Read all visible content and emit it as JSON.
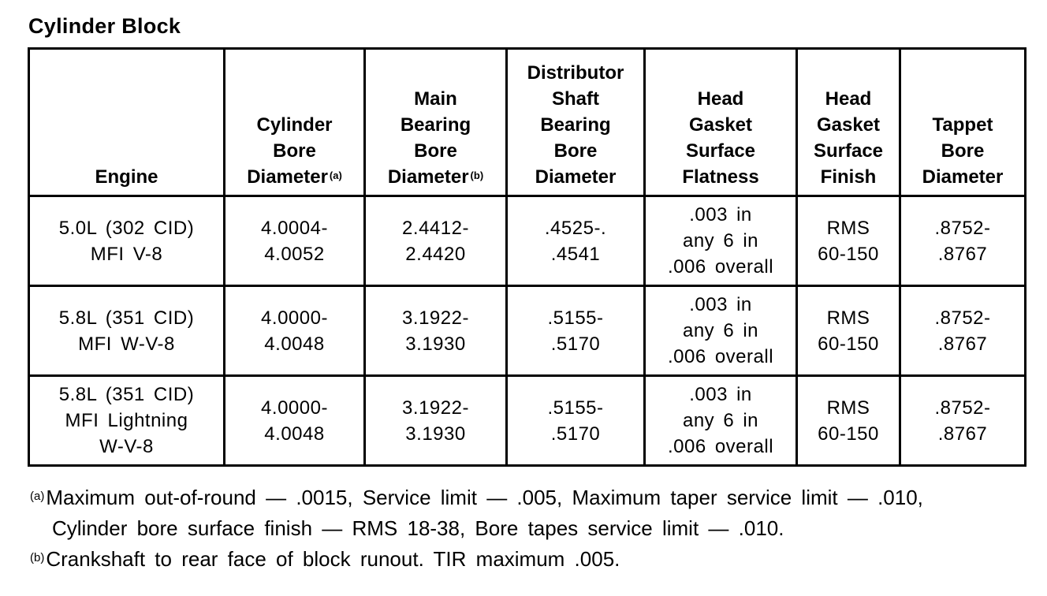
{
  "title": "Cylinder Block",
  "headers": [
    {
      "text": "Engine",
      "sup": ""
    },
    {
      "text": "Cylinder\nBore\nDiameter",
      "sup": "(a)"
    },
    {
      "text": "Main\nBearing\nBore\nDiameter",
      "sup": "(b)"
    },
    {
      "text": "Distributor\nShaft\nBearing\nBore\nDiameter",
      "sup": ""
    },
    {
      "text": "Head\nGasket\nSurface\nFlatness",
      "sup": ""
    },
    {
      "text": "Head\nGasket\nSurface\nFinish",
      "sup": ""
    },
    {
      "text": "Tappet\nBore\nDiameter",
      "sup": ""
    }
  ],
  "rows": [
    [
      "5.0L (302 CID)\nMFI V-8",
      "4.0004-\n4.0052",
      "2.4412-\n2.4420",
      ".4525-.\n.4541",
      ".003 in\nany 6 in\n.006 overall",
      "RMS\n60-150",
      ".8752-\n.8767"
    ],
    [
      "5.8L (351 CID)\nMFI W-V-8",
      "4.0000-\n4.0048",
      "3.1922-\n3.1930",
      ".5155-\n.5170",
      ".003 in\nany 6 in\n.006 overall",
      "RMS\n60-150",
      ".8752-\n.8767"
    ],
    [
      "5.8L (351 CID)\nMFI Lightning\nW-V-8",
      "4.0000-\n4.0048",
      "3.1922-\n3.1930",
      ".5155-\n.5170",
      ".003 in\nany 6 in\n.006 overall",
      "RMS\n60-150",
      ".8752-\n.8767"
    ]
  ],
  "footnotes": {
    "a_mark": "(a)",
    "a_line1": "Maximum out-of-round — .0015, Service limit — .005, Maximum taper service limit — .010,",
    "a_line2": "Cylinder bore surface finish — RMS 18-38, Bore tapes service limit — .010.",
    "b_mark": "(b)",
    "b_line1": "Crankshaft to rear face of block runout. TIR maximum .005."
  }
}
